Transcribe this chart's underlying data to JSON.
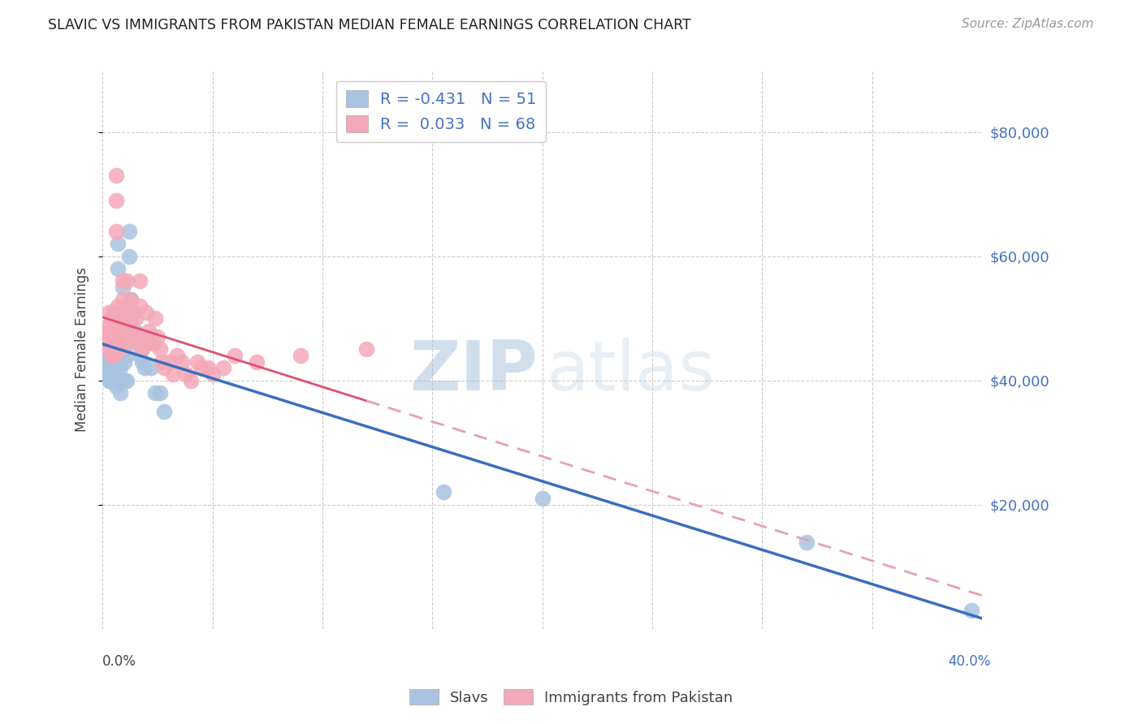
{
  "title": "SLAVIC VS IMMIGRANTS FROM PAKISTAN MEDIAN FEMALE EARNINGS CORRELATION CHART",
  "source": "Source: ZipAtlas.com",
  "ylabel": "Median Female Earnings",
  "ytick_values": [
    20000,
    40000,
    60000,
    80000
  ],
  "xlim": [
    0.0,
    0.4
  ],
  "ylim": [
    0,
    90000
  ],
  "legend_entries": [
    {
      "color": "#a8c4e0",
      "R": "-0.431",
      "N": "51"
    },
    {
      "color": "#f4a8b8",
      "R": "0.033",
      "N": "68"
    }
  ],
  "legend_labels": [
    "Slavs",
    "Immigrants from Pakistan"
  ],
  "background_color": "#ffffff",
  "grid_color": "#cccccc",
  "watermark_zip": "ZIP",
  "watermark_atlas": "atlas",
  "slavs_x": [
    0.001,
    0.002,
    0.002,
    0.003,
    0.003,
    0.003,
    0.004,
    0.004,
    0.004,
    0.005,
    0.005,
    0.005,
    0.005,
    0.006,
    0.006,
    0.006,
    0.006,
    0.007,
    0.007,
    0.007,
    0.007,
    0.008,
    0.008,
    0.008,
    0.009,
    0.009,
    0.01,
    0.01,
    0.01,
    0.011,
    0.011,
    0.012,
    0.012,
    0.013,
    0.013,
    0.014,
    0.014,
    0.015,
    0.016,
    0.017,
    0.018,
    0.019,
    0.02,
    0.022,
    0.024,
    0.026,
    0.028,
    0.155,
    0.2,
    0.32,
    0.395
  ],
  "slavs_y": [
    44000,
    43000,
    41000,
    44000,
    42000,
    40000,
    44000,
    42000,
    40000,
    45000,
    43000,
    42000,
    40000,
    45000,
    44000,
    41000,
    39000,
    62000,
    58000,
    44000,
    43000,
    42000,
    40000,
    38000,
    55000,
    50000,
    45000,
    43000,
    40000,
    44000,
    40000,
    64000,
    60000,
    53000,
    48000,
    51000,
    47000,
    48000,
    46000,
    44000,
    43000,
    42000,
    46000,
    42000,
    38000,
    38000,
    35000,
    22000,
    21000,
    14000,
    3000
  ],
  "pak_x": [
    0.001,
    0.002,
    0.002,
    0.003,
    0.003,
    0.003,
    0.003,
    0.004,
    0.004,
    0.004,
    0.004,
    0.005,
    0.005,
    0.005,
    0.005,
    0.006,
    0.006,
    0.006,
    0.007,
    0.007,
    0.007,
    0.007,
    0.008,
    0.008,
    0.008,
    0.009,
    0.009,
    0.01,
    0.01,
    0.011,
    0.011,
    0.012,
    0.012,
    0.013,
    0.013,
    0.014,
    0.015,
    0.015,
    0.016,
    0.017,
    0.017,
    0.018,
    0.018,
    0.019,
    0.02,
    0.021,
    0.022,
    0.023,
    0.024,
    0.025,
    0.026,
    0.027,
    0.028,
    0.03,
    0.032,
    0.034,
    0.036,
    0.038,
    0.04,
    0.043,
    0.045,
    0.048,
    0.05,
    0.055,
    0.06,
    0.07,
    0.09,
    0.12
  ],
  "pak_y": [
    48000,
    48000,
    46000,
    51000,
    49000,
    47000,
    45000,
    50000,
    48000,
    46000,
    44000,
    51000,
    48000,
    46000,
    44000,
    73000,
    69000,
    64000,
    52000,
    49000,
    47000,
    45000,
    50000,
    47000,
    45000,
    56000,
    53000,
    49000,
    46000,
    56000,
    52000,
    50000,
    47000,
    53000,
    49000,
    47000,
    50000,
    47000,
    46000,
    56000,
    52000,
    47000,
    45000,
    46000,
    51000,
    48000,
    47000,
    46000,
    50000,
    47000,
    45000,
    43000,
    42000,
    43000,
    41000,
    44000,
    43000,
    41000,
    40000,
    43000,
    42000,
    42000,
    41000,
    42000,
    44000,
    43000,
    44000,
    45000
  ],
  "slav_line_color": "#3a6dbf",
  "pak_line_color": "#e05070",
  "pak_line_dash_color": "#e8a0b0",
  "slav_dot_color": "#a8c4e0",
  "pak_dot_color": "#f4a8b8"
}
